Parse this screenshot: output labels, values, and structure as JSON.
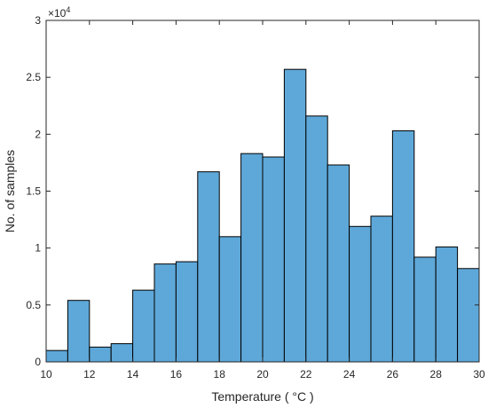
{
  "chart_data": {
    "type": "bar",
    "xlabel": "Temperature ( °C )",
    "ylabel": "No. of samples",
    "y_exponent_label": {
      "base": "×10",
      "power": "4"
    },
    "xlim": [
      10,
      30
    ],
    "ylim": [
      0,
      30000
    ],
    "bin_width": 1,
    "bin_edges_start": [
      10,
      11,
      12,
      13,
      14,
      15,
      16,
      17,
      18,
      19,
      20,
      21,
      22,
      23,
      24,
      25,
      26,
      27,
      28,
      29
    ],
    "values": [
      1000,
      5400,
      1300,
      1600,
      6300,
      8600,
      8800,
      16700,
      11000,
      18300,
      18000,
      25700,
      21600,
      17300,
      11900,
      12800,
      20300,
      9200,
      10100,
      8200
    ],
    "x_ticks": [
      "10",
      "12",
      "14",
      "16",
      "18",
      "20",
      "22",
      "24",
      "26",
      "28",
      "30"
    ],
    "y_ticks": [
      "0",
      "0.5",
      "1",
      "1.5",
      "2",
      "2.5",
      "3"
    ],
    "bar_color": "#5ea8d9",
    "bar_edge_color": "#000000",
    "grid": false,
    "legend": "none"
  }
}
